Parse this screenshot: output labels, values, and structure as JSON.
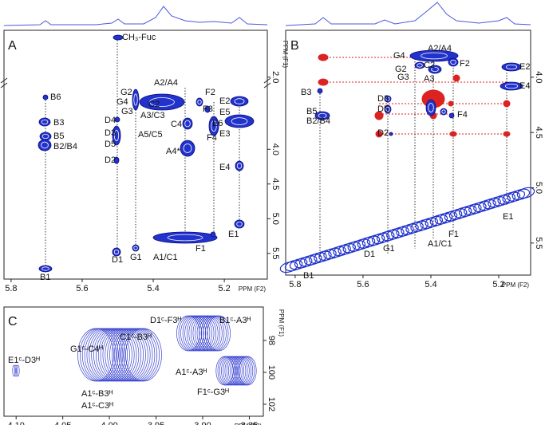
{
  "chart_data": [
    {
      "type": "contour",
      "label": "A",
      "x_label": "PPM (F2)",
      "y_label": "PPM (F1)",
      "xlim": [
        5.82,
        5.079
      ],
      "xticks": [
        5.8,
        5.6,
        5.4,
        5.2
      ],
      "ylim": [
        3.17,
        5.87
      ],
      "yticks": [
        {
          "value": 4,
          "label": "4.0"
        },
        4.5,
        {
          "value": 5,
          "label": "5.0"
        },
        5.5
      ],
      "ylim_top": [
        1.1,
        2.05
      ],
      "yticks_top": [
        {
          "value": 2,
          "label": "2.0"
        }
      ],
      "annotations": [
        "CH₃-Fuc",
        "B6",
        "B3",
        "B5",
        "B2/B4",
        "B1",
        "D4",
        "D3",
        "D5",
        "D2",
        "D1",
        "G2",
        "G4",
        "G3",
        "G1",
        "A2/A4",
        "C2",
        "A3/C3",
        "C4",
        "A5/C5",
        "A4*",
        "F2",
        "F3",
        "F4",
        "F1",
        "A1/C1",
        "E2",
        "E5",
        "E6",
        "E3",
        "E4",
        "E1"
      ]
    },
    {
      "type": "contour",
      "label": "B",
      "x_label": "PPM (F2)",
      "y_label": "PPM (F1)",
      "xlim": [
        5.828,
        5.106
      ],
      "xticks": [
        5.8,
        5.6,
        5.4,
        5.2
      ],
      "ylim": [
        3.575,
        5.79
      ],
      "yticks": [
        {
          "value": 4,
          "label": "4.0"
        },
        4.5,
        {
          "value": 5,
          "label": "5.0"
        },
        5.5
      ],
      "annotations": [
        "A2/A4",
        "G4",
        "F2",
        "G2",
        "C2",
        "G3",
        "A3",
        "E2",
        "E4",
        "B3",
        "B5",
        "B2/B4",
        "D3",
        "D5",
        "F4",
        "D2",
        "E1",
        "F1",
        "A1/C1",
        "G1",
        "D1",
        "B1"
      ]
    },
    {
      "type": "contour",
      "label": "C",
      "x_label": "PPM (F2)",
      "y_label": "PPM (F1)",
      "xlim": [
        4.113,
        3.835
      ],
      "xticks": [
        {
          "value": 4.1,
          "label": "4.10"
        },
        4.05,
        {
          "value": 4,
          "label": "4.00"
        },
        3.95,
        {
          "value": 3.9,
          "label": "3.90"
        },
        3.85
      ],
      "ylim": [
        95.9,
        102.75
      ],
      "yticks": [
        98,
        100,
        102
      ],
      "annotations": [
        "E1ᶜ-D3ᴴ",
        "G1ᶜ-C4ᴴ",
        "C1ᶜ-B3ᴴ",
        "A1ᶜ-B3ᴴ",
        "A1ᶜ-C3ᴴ",
        "D1ᶜ-F3ᴴ",
        "B1ᶜ-A3ᴴ",
        "A1ᶜ-A3ᴴ",
        "F1ᶜ-G3ᴴ"
      ]
    }
  ]
}
